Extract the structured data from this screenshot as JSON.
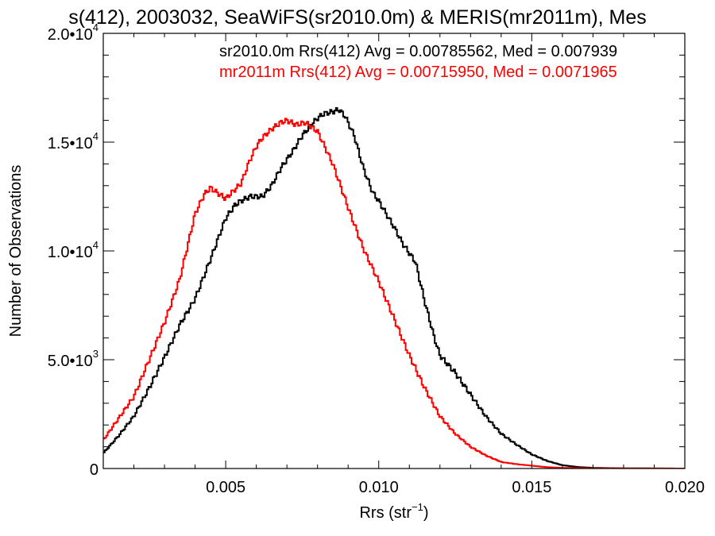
{
  "chart_data": {
    "type": "line",
    "title": "s(412), 2003032, SeaWiFS(sr2010.0m) & MERIS(mr2011m), Mes",
    "xlabel": "Rrs (str",
    "xlabel_sup": "−1",
    "xlabel_close": ")",
    "ylabel": "Number of Observations",
    "xlim": [
      0.001,
      0.02
    ],
    "ylim": [
      0,
      20000
    ],
    "grid": false,
    "x_ticks": [
      {
        "value": 0.005,
        "label": "0.005"
      },
      {
        "value": 0.01,
        "label": "0.010"
      },
      {
        "value": 0.015,
        "label": "0.015"
      },
      {
        "value": 0.02,
        "label": "0.020"
      }
    ],
    "y_ticks": [
      {
        "value": 0,
        "mant": "0",
        "exp": ""
      },
      {
        "value": 5000,
        "mant": "5.0•10",
        "exp": "3"
      },
      {
        "value": 10000,
        "mant": "1.0•10",
        "exp": "4"
      },
      {
        "value": 15000,
        "mant": "1.5•10",
        "exp": "4"
      },
      {
        "value": 20000,
        "mant": "2.0•10",
        "exp": "4"
      }
    ],
    "annotations": [
      {
        "text": "sr2010.0m Rrs(412) Avg = 0.00785562, Med = 0.007939",
        "color": "#000000"
      },
      {
        "text": "mr2011m Rrs(412) Avg = 0.00715950, Med = 0.0071965",
        "color": "#ff0000"
      }
    ],
    "series": [
      {
        "color": "#000000",
        "x": [
          0.001,
          0.0015,
          0.002,
          0.0025,
          0.003,
          0.0035,
          0.004,
          0.0045,
          0.005,
          0.0053,
          0.0055,
          0.0058,
          0.0062,
          0.0065,
          0.0068,
          0.0072,
          0.0075,
          0.0078,
          0.008,
          0.0082,
          0.0085,
          0.0087,
          0.0089,
          0.0092,
          0.0095,
          0.0098,
          0.01,
          0.0105,
          0.0108,
          0.0112,
          0.0115,
          0.0118,
          0.012,
          0.0125,
          0.013,
          0.0135,
          0.014,
          0.0145,
          0.015,
          0.0155,
          0.016,
          0.0165,
          0.017,
          0.018,
          0.019,
          0.02
        ],
        "y": [
          700,
          1500,
          2400,
          3700,
          5100,
          6600,
          7800,
          9600,
          11500,
          12100,
          12300,
          12500,
          12500,
          13000,
          13800,
          14600,
          15300,
          15800,
          16100,
          16300,
          16400,
          16500,
          16200,
          15300,
          13800,
          12700,
          12300,
          11100,
          10300,
          9500,
          7700,
          6100,
          5200,
          4400,
          3400,
          2400,
          1600,
          1100,
          650,
          350,
          150,
          70,
          30,
          10,
          5,
          0
        ]
      },
      {
        "color": "#ff0000",
        "x": [
          0.001,
          0.0015,
          0.002,
          0.0025,
          0.003,
          0.0035,
          0.004,
          0.0043,
          0.0045,
          0.0048,
          0.005,
          0.0055,
          0.0058,
          0.006,
          0.0062,
          0.0065,
          0.0068,
          0.007,
          0.0073,
          0.0076,
          0.008,
          0.0082,
          0.0085,
          0.009,
          0.0095,
          0.01,
          0.0105,
          0.011,
          0.0115,
          0.012,
          0.0125,
          0.013,
          0.0135,
          0.014,
          0.0145,
          0.015,
          0.0155,
          0.016,
          0.017,
          0.018,
          0.02
        ],
        "y": [
          1300,
          2300,
          3300,
          5000,
          6700,
          8700,
          11700,
          12600,
          12900,
          12600,
          12400,
          13100,
          14200,
          14800,
          15200,
          15600,
          15900,
          16000,
          15800,
          15900,
          15500,
          14900,
          14000,
          12000,
          10100,
          8600,
          6900,
          5200,
          3700,
          2400,
          1600,
          1000,
          600,
          300,
          200,
          130,
          60,
          30,
          10,
          5,
          0
        ]
      }
    ]
  }
}
